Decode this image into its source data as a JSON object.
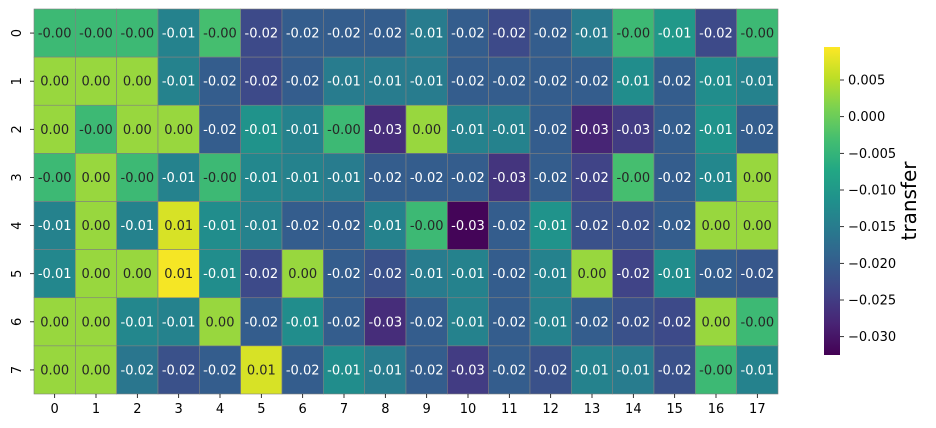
{
  "chart_data": {
    "type": "heatmap",
    "colormap": "viridis",
    "row_labels": [
      "0",
      "1",
      "2",
      "3",
      "4",
      "5",
      "6",
      "7"
    ],
    "col_labels": [
      "0",
      "1",
      "2",
      "3",
      "4",
      "5",
      "6",
      "7",
      "8",
      "9",
      "10",
      "11",
      "12",
      "13",
      "14",
      "15",
      "16",
      "17"
    ],
    "values": [
      [
        -0.004,
        -0.004,
        -0.004,
        -0.014,
        -0.003,
        -0.023,
        -0.02,
        -0.02,
        -0.02,
        -0.015,
        -0.02,
        -0.023,
        -0.02,
        -0.015,
        -0.004,
        -0.01,
        -0.023,
        -0.004
      ],
      [
        0.003,
        0.003,
        0.003,
        -0.014,
        -0.02,
        -0.023,
        -0.02,
        -0.015,
        -0.015,
        -0.015,
        -0.02,
        -0.02,
        -0.02,
        -0.02,
        -0.012,
        -0.02,
        -0.012,
        -0.014
      ],
      [
        0.003,
        -0.004,
        0.003,
        0.003,
        -0.02,
        -0.011,
        -0.014,
        -0.004,
        -0.027,
        0.003,
        -0.014,
        -0.014,
        -0.02,
        -0.028,
        -0.025,
        -0.02,
        -0.011,
        -0.02
      ],
      [
        -0.004,
        0.003,
        -0.004,
        -0.014,
        -0.004,
        -0.013,
        -0.014,
        -0.015,
        -0.02,
        -0.02,
        -0.02,
        -0.026,
        -0.02,
        -0.024,
        -0.003,
        -0.02,
        -0.013,
        0.003
      ],
      [
        -0.014,
        0.003,
        -0.014,
        0.007,
        -0.012,
        -0.014,
        -0.02,
        -0.02,
        -0.014,
        -0.004,
        -0.032,
        -0.02,
        -0.011,
        -0.022,
        -0.022,
        -0.02,
        0.003,
        0.003
      ],
      [
        -0.013,
        0.003,
        0.003,
        0.009,
        -0.012,
        -0.023,
        0.003,
        -0.02,
        -0.022,
        -0.015,
        -0.014,
        -0.02,
        -0.014,
        0.003,
        -0.024,
        -0.012,
        -0.02,
        -0.021
      ],
      [
        0.003,
        0.003,
        -0.013,
        -0.014,
        0.003,
        -0.02,
        -0.012,
        -0.02,
        -0.027,
        -0.02,
        -0.014,
        -0.02,
        -0.014,
        -0.02,
        -0.022,
        -0.023,
        0.003,
        -0.004
      ],
      [
        0.003,
        0.003,
        -0.016,
        -0.022,
        -0.02,
        0.007,
        -0.02,
        -0.012,
        -0.015,
        -0.02,
        -0.025,
        -0.02,
        -0.022,
        -0.014,
        -0.015,
        -0.022,
        -0.004,
        -0.014
      ]
    ],
    "annotations": [
      [
        "-0.00",
        "-0.00",
        "-0.00",
        "-0.01",
        "-0.00",
        "-0.02",
        "-0.02",
        "-0.02",
        "-0.02",
        "-0.01",
        "-0.02",
        "-0.02",
        "-0.02",
        "-0.01",
        "-0.00",
        "-0.01",
        "-0.02",
        "-0.00"
      ],
      [
        "0.00",
        "0.00",
        "0.00",
        "-0.01",
        "-0.02",
        "-0.02",
        "-0.02",
        "-0.01",
        "-0.01",
        "-0.01",
        "-0.02",
        "-0.02",
        "-0.02",
        "-0.02",
        "-0.01",
        "-0.02",
        "-0.01",
        "-0.01"
      ],
      [
        "0.00",
        "-0.00",
        "0.00",
        "0.00",
        "-0.02",
        "-0.01",
        "-0.01",
        "-0.00",
        "-0.03",
        "0.00",
        "-0.01",
        "-0.01",
        "-0.02",
        "-0.03",
        "-0.03",
        "-0.02",
        "-0.01",
        "-0.02"
      ],
      [
        "-0.00",
        "0.00",
        "-0.00",
        "-0.01",
        "-0.00",
        "-0.01",
        "-0.01",
        "-0.01",
        "-0.02",
        "-0.02",
        "-0.02",
        "-0.03",
        "-0.02",
        "-0.02",
        "-0.00",
        "-0.02",
        "-0.01",
        "0.00"
      ],
      [
        "-0.01",
        "0.00",
        "-0.01",
        "0.01",
        "-0.01",
        "-0.01",
        "-0.02",
        "-0.02",
        "-0.01",
        "-0.00",
        "-0.03",
        "-0.02",
        "-0.01",
        "-0.02",
        "-0.02",
        "-0.02",
        "0.00",
        "0.00"
      ],
      [
        "-0.01",
        "0.00",
        "0.00",
        "0.01",
        "-0.01",
        "-0.02",
        "0.00",
        "-0.02",
        "-0.02",
        "-0.01",
        "-0.01",
        "-0.02",
        "-0.01",
        "0.00",
        "-0.02",
        "-0.01",
        "-0.02",
        "-0.02"
      ],
      [
        "0.00",
        "0.00",
        "-0.01",
        "-0.01",
        "0.00",
        "-0.02",
        "-0.01",
        "-0.02",
        "-0.03",
        "-0.02",
        "-0.01",
        "-0.02",
        "-0.01",
        "-0.02",
        "-0.02",
        "-0.02",
        "0.00",
        "-0.00"
      ],
      [
        "0.00",
        "0.00",
        "-0.02",
        "-0.02",
        "-0.02",
        "0.01",
        "-0.02",
        "-0.01",
        "-0.01",
        "-0.02",
        "-0.03",
        "-0.02",
        "-0.02",
        "-0.01",
        "-0.01",
        "-0.02",
        "-0.00",
        "-0.01"
      ]
    ],
    "vmin": -0.0325,
    "vmax": 0.0095,
    "cell_border_color": "#808080",
    "colorbar": {
      "label": "transfer",
      "ticks": [
        0.005,
        0.0,
        -0.005,
        -0.01,
        -0.015,
        -0.02,
        -0.025,
        -0.03
      ],
      "tick_labels": [
        "0.005",
        "0.000",
        "−0.005",
        "−0.010",
        "−0.015",
        "−0.020",
        "−0.025",
        "−0.030"
      ]
    }
  }
}
